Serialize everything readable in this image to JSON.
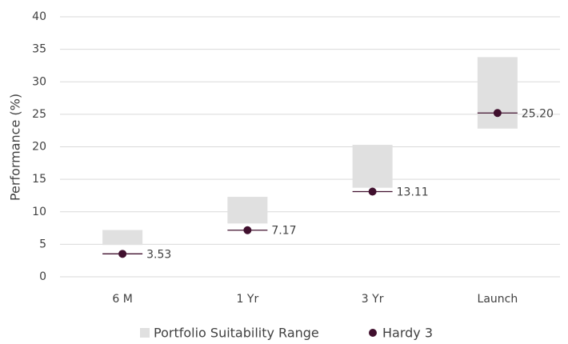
{
  "chart_data": {
    "type": "range-dot",
    "y_label": "Performance (%)",
    "categories": [
      "6 M",
      "1 Yr",
      "3 Yr",
      "Launch"
    ],
    "series": [
      {
        "name": "Portfolio Suitability Range",
        "kind": "range",
        "color": "#e0e0e0",
        "low": [
          4.9,
          8.2,
          13.7,
          22.8
        ],
        "high": [
          7.2,
          12.3,
          20.3,
          33.8
        ]
      },
      {
        "name": "Hardy 3",
        "kind": "dot",
        "color": "#40102e",
        "values": [
          3.53,
          7.17,
          13.11,
          25.2
        ],
        "value_labels": [
          "3.53",
          "7.17",
          "13.11",
          "25.20"
        ]
      }
    ],
    "ylim": [
      0,
      40
    ],
    "yticks": [
      0,
      5,
      10,
      15,
      20,
      25,
      30,
      35,
      40
    ],
    "grid": true
  }
}
